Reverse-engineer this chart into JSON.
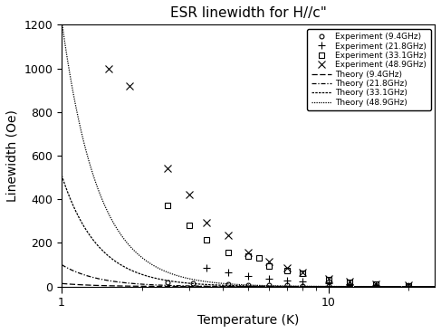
{
  "title": "ESR linewidth for H//c\"",
  "xlabel": "Temperature (K)",
  "ylabel": "Linewidth (Oe)",
  "xlim": [
    1,
    25
  ],
  "ylim": [
    0,
    1200
  ],
  "yticks": [
    0,
    200,
    400,
    600,
    800,
    1000,
    1200
  ],
  "color": "black",
  "legend_labels_exp": [
    "Experiment (9.4GHz)",
    "Experiment (21.8GHz)",
    "Experiment (33.1GHz)",
    "Experiment (48.9GHz)"
  ],
  "legend_labels_theory": [
    "Theory (9.4GHz)",
    "Theory (21.8GHz)",
    "Theory (33.1GHz)",
    "Theory (48.9GHz)"
  ],
  "exp_markers": [
    "o",
    "+",
    "s",
    "x"
  ],
  "exp_marker_sizes": [
    3.5,
    5.5,
    4.0,
    5.5
  ],
  "exp_9p4_T": [
    2.5,
    3.1,
    4.2,
    5.0,
    6.0,
    7.0,
    8.0,
    10.0,
    12.0,
    15.0,
    20.0
  ],
  "exp_9p4_W": [
    20,
    14,
    10,
    8,
    6,
    5,
    4,
    3,
    2,
    1,
    1
  ],
  "exp_21p8_T": [
    3.5,
    4.2,
    5.0,
    6.0,
    7.0,
    8.0,
    10.0,
    12.0,
    15.0,
    20.0
  ],
  "exp_21p8_W": [
    85,
    65,
    50,
    38,
    28,
    22,
    14,
    10,
    6,
    3
  ],
  "exp_33p1_T": [
    2.5,
    3.0,
    3.5,
    4.2,
    5.0,
    5.5,
    6.0,
    7.0,
    8.0,
    10.0,
    12.0,
    15.0,
    20.0
  ],
  "exp_33p1_W": [
    370,
    280,
    215,
    155,
    140,
    130,
    95,
    75,
    60,
    32,
    18,
    10,
    4
  ],
  "exp_48p9_T": [
    1.5,
    1.8,
    2.5,
    3.0,
    3.5,
    4.2,
    5.0,
    6.0,
    7.0,
    8.0,
    10.0,
    12.0,
    15.0,
    20.0
  ],
  "exp_48p9_W": [
    1000,
    920,
    540,
    420,
    295,
    235,
    155,
    115,
    85,
    65,
    38,
    22,
    12,
    6
  ],
  "theory_A_9p4": 14.0,
  "theory_A_21p8": 100.0,
  "theory_A_33p1": 510.0,
  "theory_A_48p9": 1220.0,
  "theory_exponent": 3.2
}
